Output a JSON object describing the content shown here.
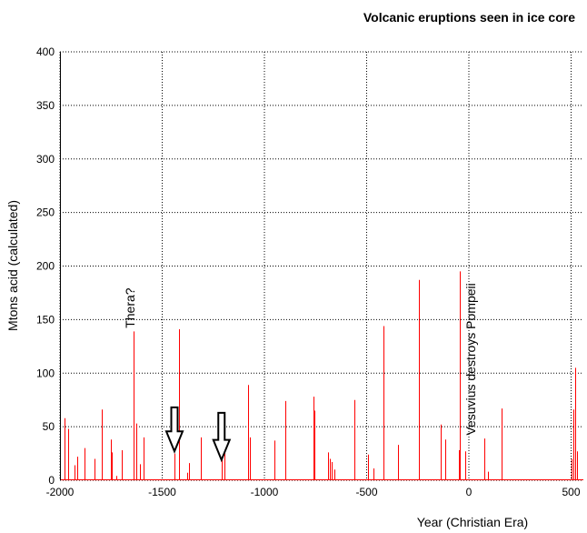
{
  "chart_data": {
    "type": "bar",
    "title": "Volcanic eruptions seen in ice core",
    "xlabel": "Year (Christian Era)",
    "ylabel": "Mtons acid (calculated)",
    "xlim": [
      -2000,
      560
    ],
    "ylim": [
      0,
      400
    ],
    "xticks": [
      -2000,
      -1500,
      -1000,
      -500,
      0,
      500
    ],
    "yticks": [
      0,
      50,
      100,
      150,
      200,
      250,
      300,
      350,
      400
    ],
    "grid": true,
    "bar_color": "#ff0000",
    "series": [
      {
        "x": [
          -1980,
          -1960,
          -1930,
          -1915,
          -1880,
          -1830,
          -1795,
          -1750,
          -1745,
          -1725,
          -1700,
          -1640,
          -1625,
          -1610,
          -1590,
          -1440,
          -1420,
          -1380,
          -1370,
          -1310,
          -1210,
          -1195,
          -1080,
          -1070,
          -950,
          -900,
          -760,
          -755,
          -690,
          -680,
          -670,
          -660,
          -560,
          -495,
          -465,
          -420,
          -345,
          -245,
          -140,
          -115,
          -50,
          -45,
          -20,
          75,
          95,
          160,
          500,
          510,
          520,
          530
        ],
        "y": [
          58,
          48,
          14,
          22,
          30,
          20,
          66,
          38,
          26,
          4,
          28,
          139,
          53,
          15,
          40,
          25,
          141,
          7,
          16,
          40,
          19,
          30,
          89,
          40,
          37,
          74,
          78,
          65,
          26,
          20,
          17,
          10,
          75,
          24,
          11,
          144,
          33,
          187,
          52,
          38,
          28,
          195,
          27,
          39,
          8,
          67,
          20,
          66,
          105,
          27
        ]
      }
    ],
    "annotations": [
      {
        "text": "Thera?",
        "x": -1635,
        "y": 142
      },
      {
        "text": "Vesuvius destroys Pompeii",
        "x": 30,
        "y": 42
      }
    ],
    "markers": [
      {
        "shape": "down-arrow",
        "x": -1440,
        "y_top": 68,
        "y_tip": 27
      },
      {
        "shape": "down-arrow",
        "x": -1210,
        "y_top": 63,
        "y_tip": 19
      }
    ]
  }
}
